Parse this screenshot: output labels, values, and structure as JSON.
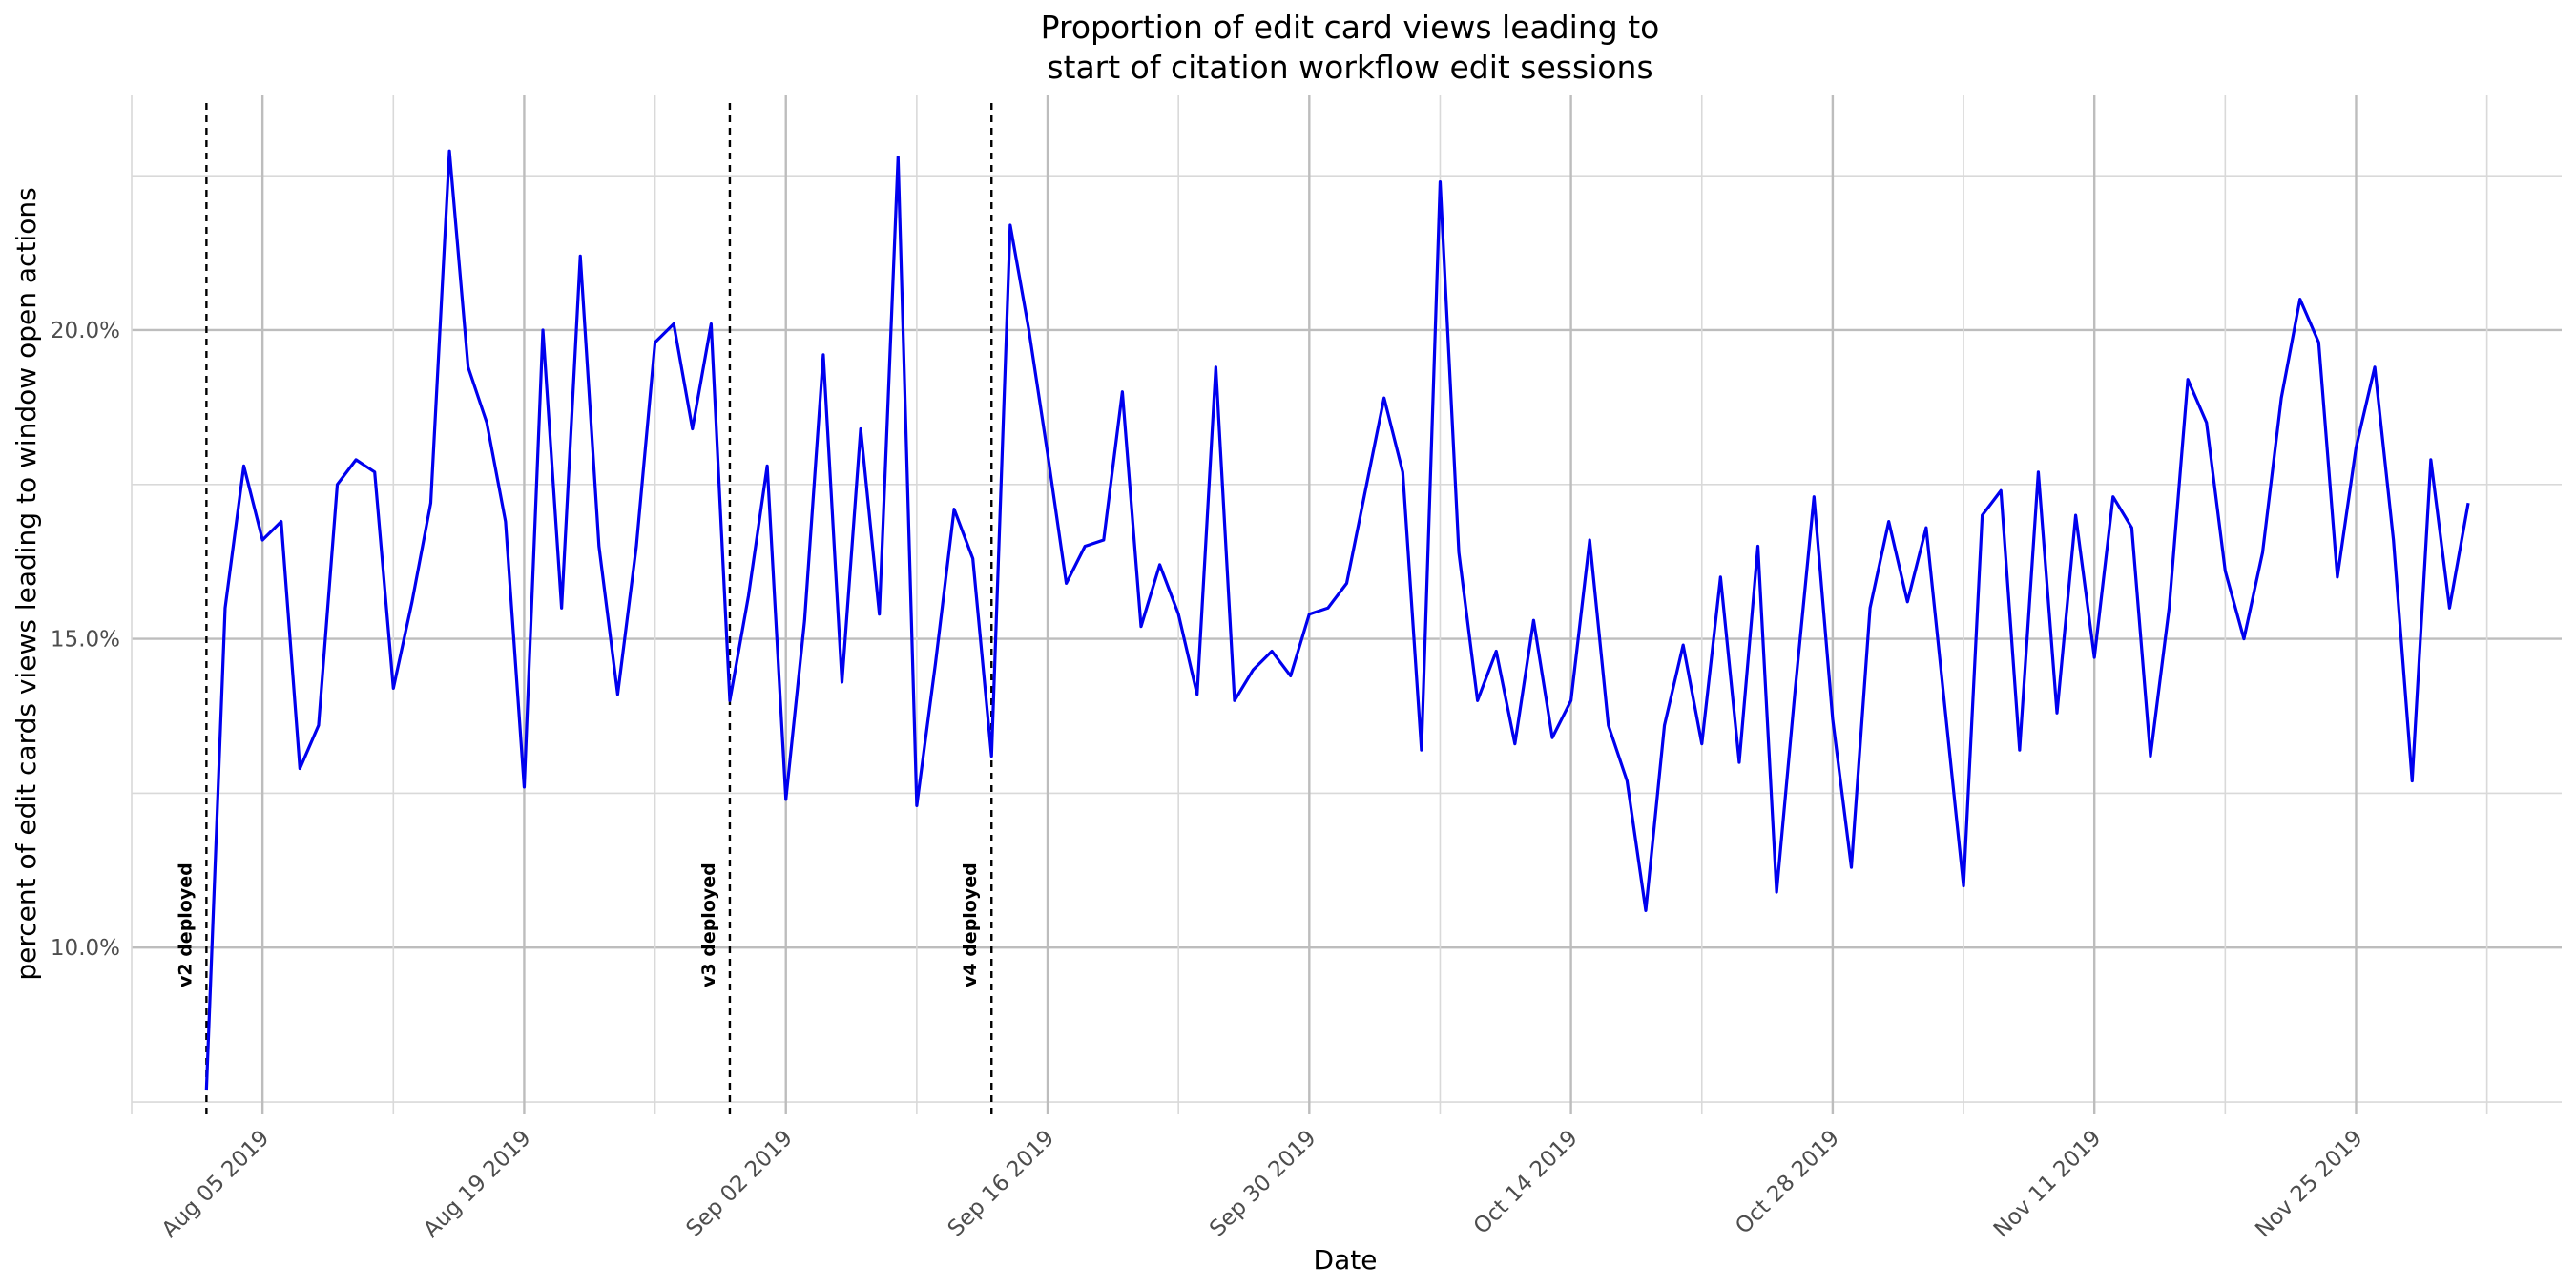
{
  "chart_data": {
    "type": "line",
    "title": "Proportion of edit card views leading to\nstart of citation workflow edit sessions",
    "xlabel": "Date",
    "ylabel": "percent of edit cards views leading to window open actions",
    "x_range": [
      "2019-07-29",
      "2019-12-06"
    ],
    "ylim": [
      0.073,
      0.238
    ],
    "y_ticks": [
      0.1,
      0.15,
      0.2
    ],
    "y_tick_labels": [
      "10.0%",
      "15.0%",
      "20.0%"
    ],
    "x_ticks": [
      "2019-08-05",
      "2019-08-19",
      "2019-09-02",
      "2019-09-16",
      "2019-09-30",
      "2019-10-14",
      "2019-10-28",
      "2019-11-11",
      "2019-11-25"
    ],
    "x_tick_labels": [
      "Aug 05 2019",
      "Aug 19 2019",
      "Sep 02 2019",
      "Sep 16 2019",
      "Sep 30 2019",
      "Oct 14 2019",
      "Oct 28 2019",
      "Nov 11 2019",
      "Nov 25 2019"
    ],
    "grid": true,
    "line_color": "#0000ee",
    "annotations": [
      {
        "date": "2019-08-02",
        "label": "v2 deployed"
      },
      {
        "date": "2019-08-30",
        "label": "v3 deployed"
      },
      {
        "date": "2019-09-13",
        "label": "v4 deployed"
      }
    ],
    "series": [
      {
        "start_date": "2019-08-02",
        "values": [
          0.077,
          0.155,
          0.178,
          0.166,
          0.169,
          0.129,
          0.136,
          0.175,
          0.179,
          0.177,
          0.142,
          0.156,
          0.172,
          0.229,
          0.194,
          0.185,
          0.169,
          0.126,
          0.2,
          0.155,
          0.212,
          0.165,
          0.141,
          0.165,
          0.198,
          0.201,
          0.184,
          0.201,
          0.14,
          0.157,
          0.178,
          0.124,
          0.153,
          0.196,
          0.143,
          0.184,
          0.154,
          0.228,
          0.123,
          0.146,
          0.171,
          0.163,
          0.131,
          0.217,
          0.2,
          0.18,
          0.159,
          0.165,
          0.166,
          0.19,
          0.152,
          0.162,
          0.154,
          0.141,
          0.194,
          0.14,
          0.145,
          0.148,
          0.144,
          0.154,
          0.155,
          0.159,
          0.174,
          0.189,
          0.177,
          0.132,
          0.224,
          0.164,
          0.14,
          0.148,
          0.133,
          0.153,
          0.134,
          0.14,
          0.166,
          0.136,
          0.127,
          0.106,
          0.136,
          0.149,
          0.133,
          0.16,
          0.13,
          0.165,
          0.109,
          0.142,
          0.173,
          0.137,
          0.113,
          0.155,
          0.169,
          0.156,
          0.168,
          0.139,
          0.11,
          0.17,
          0.174,
          0.132,
          0.177,
          0.138,
          0.17,
          0.147,
          0.173,
          0.168,
          0.131,
          0.155,
          0.192,
          0.185,
          0.161,
          0.15,
          0.164,
          0.189,
          0.205,
          0.198,
          0.16,
          0.181,
          0.194,
          0.166,
          0.127,
          0.179,
          0.155,
          0.172
        ]
      }
    ]
  }
}
